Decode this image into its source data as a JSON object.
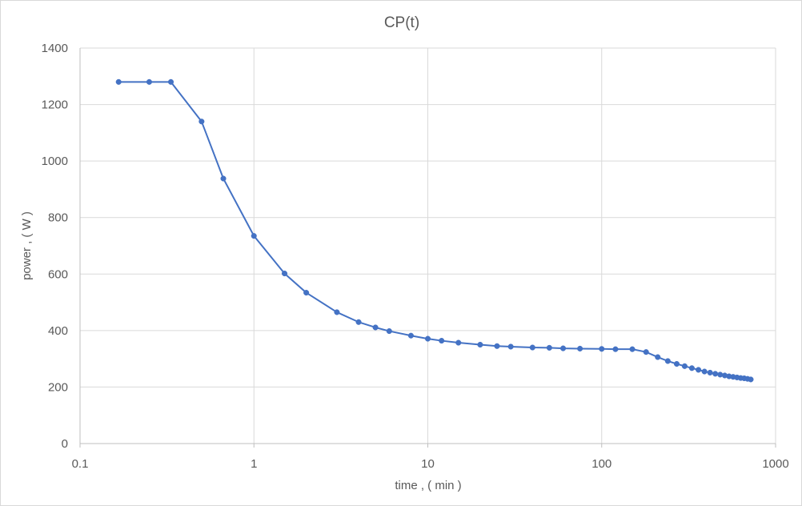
{
  "chart_data": {
    "type": "scatter",
    "title": "CP(t)",
    "xlabel": "time , ( min )",
    "ylabel": "power , ( W )",
    "x_scale": "log",
    "xlim": [
      0.1,
      1000
    ],
    "ylim": [
      0,
      1400
    ],
    "x_ticks": [
      "0.1",
      "1",
      "10",
      "100",
      "1000"
    ],
    "y_ticks": [
      "0",
      "200",
      "400",
      "600",
      "800",
      "1000",
      "1200",
      "1400"
    ],
    "grid": true,
    "colors": {
      "series": "#4472c4",
      "grid": "#d9d9d9",
      "axis": "#bfbfbf",
      "text": "#595959"
    },
    "series": [
      {
        "x": [
          0.1667,
          0.25,
          0.333,
          0.5,
          0.667,
          1,
          1.5,
          2,
          3,
          4,
          5,
          6,
          8,
          10,
          12,
          15,
          20,
          25,
          30,
          40,
          50,
          60,
          75,
          100,
          120,
          150,
          180,
          210,
          240,
          270,
          300,
          330,
          360,
          390,
          420,
          450,
          480,
          510,
          540,
          570,
          600,
          630,
          660,
          690,
          720
        ],
        "y": [
          1280,
          1280,
          1280,
          1140,
          938,
          735,
          602,
          534,
          465,
          430,
          411,
          398,
          382,
          371,
          364,
          357,
          350,
          345,
          343,
          340,
          339,
          337,
          336,
          335,
          334,
          334,
          324,
          306,
          292,
          282,
          274,
          267,
          261,
          255,
          251,
          247,
          244,
          241,
          238,
          236,
          234,
          232,
          231,
          229,
          227
        ]
      }
    ]
  }
}
